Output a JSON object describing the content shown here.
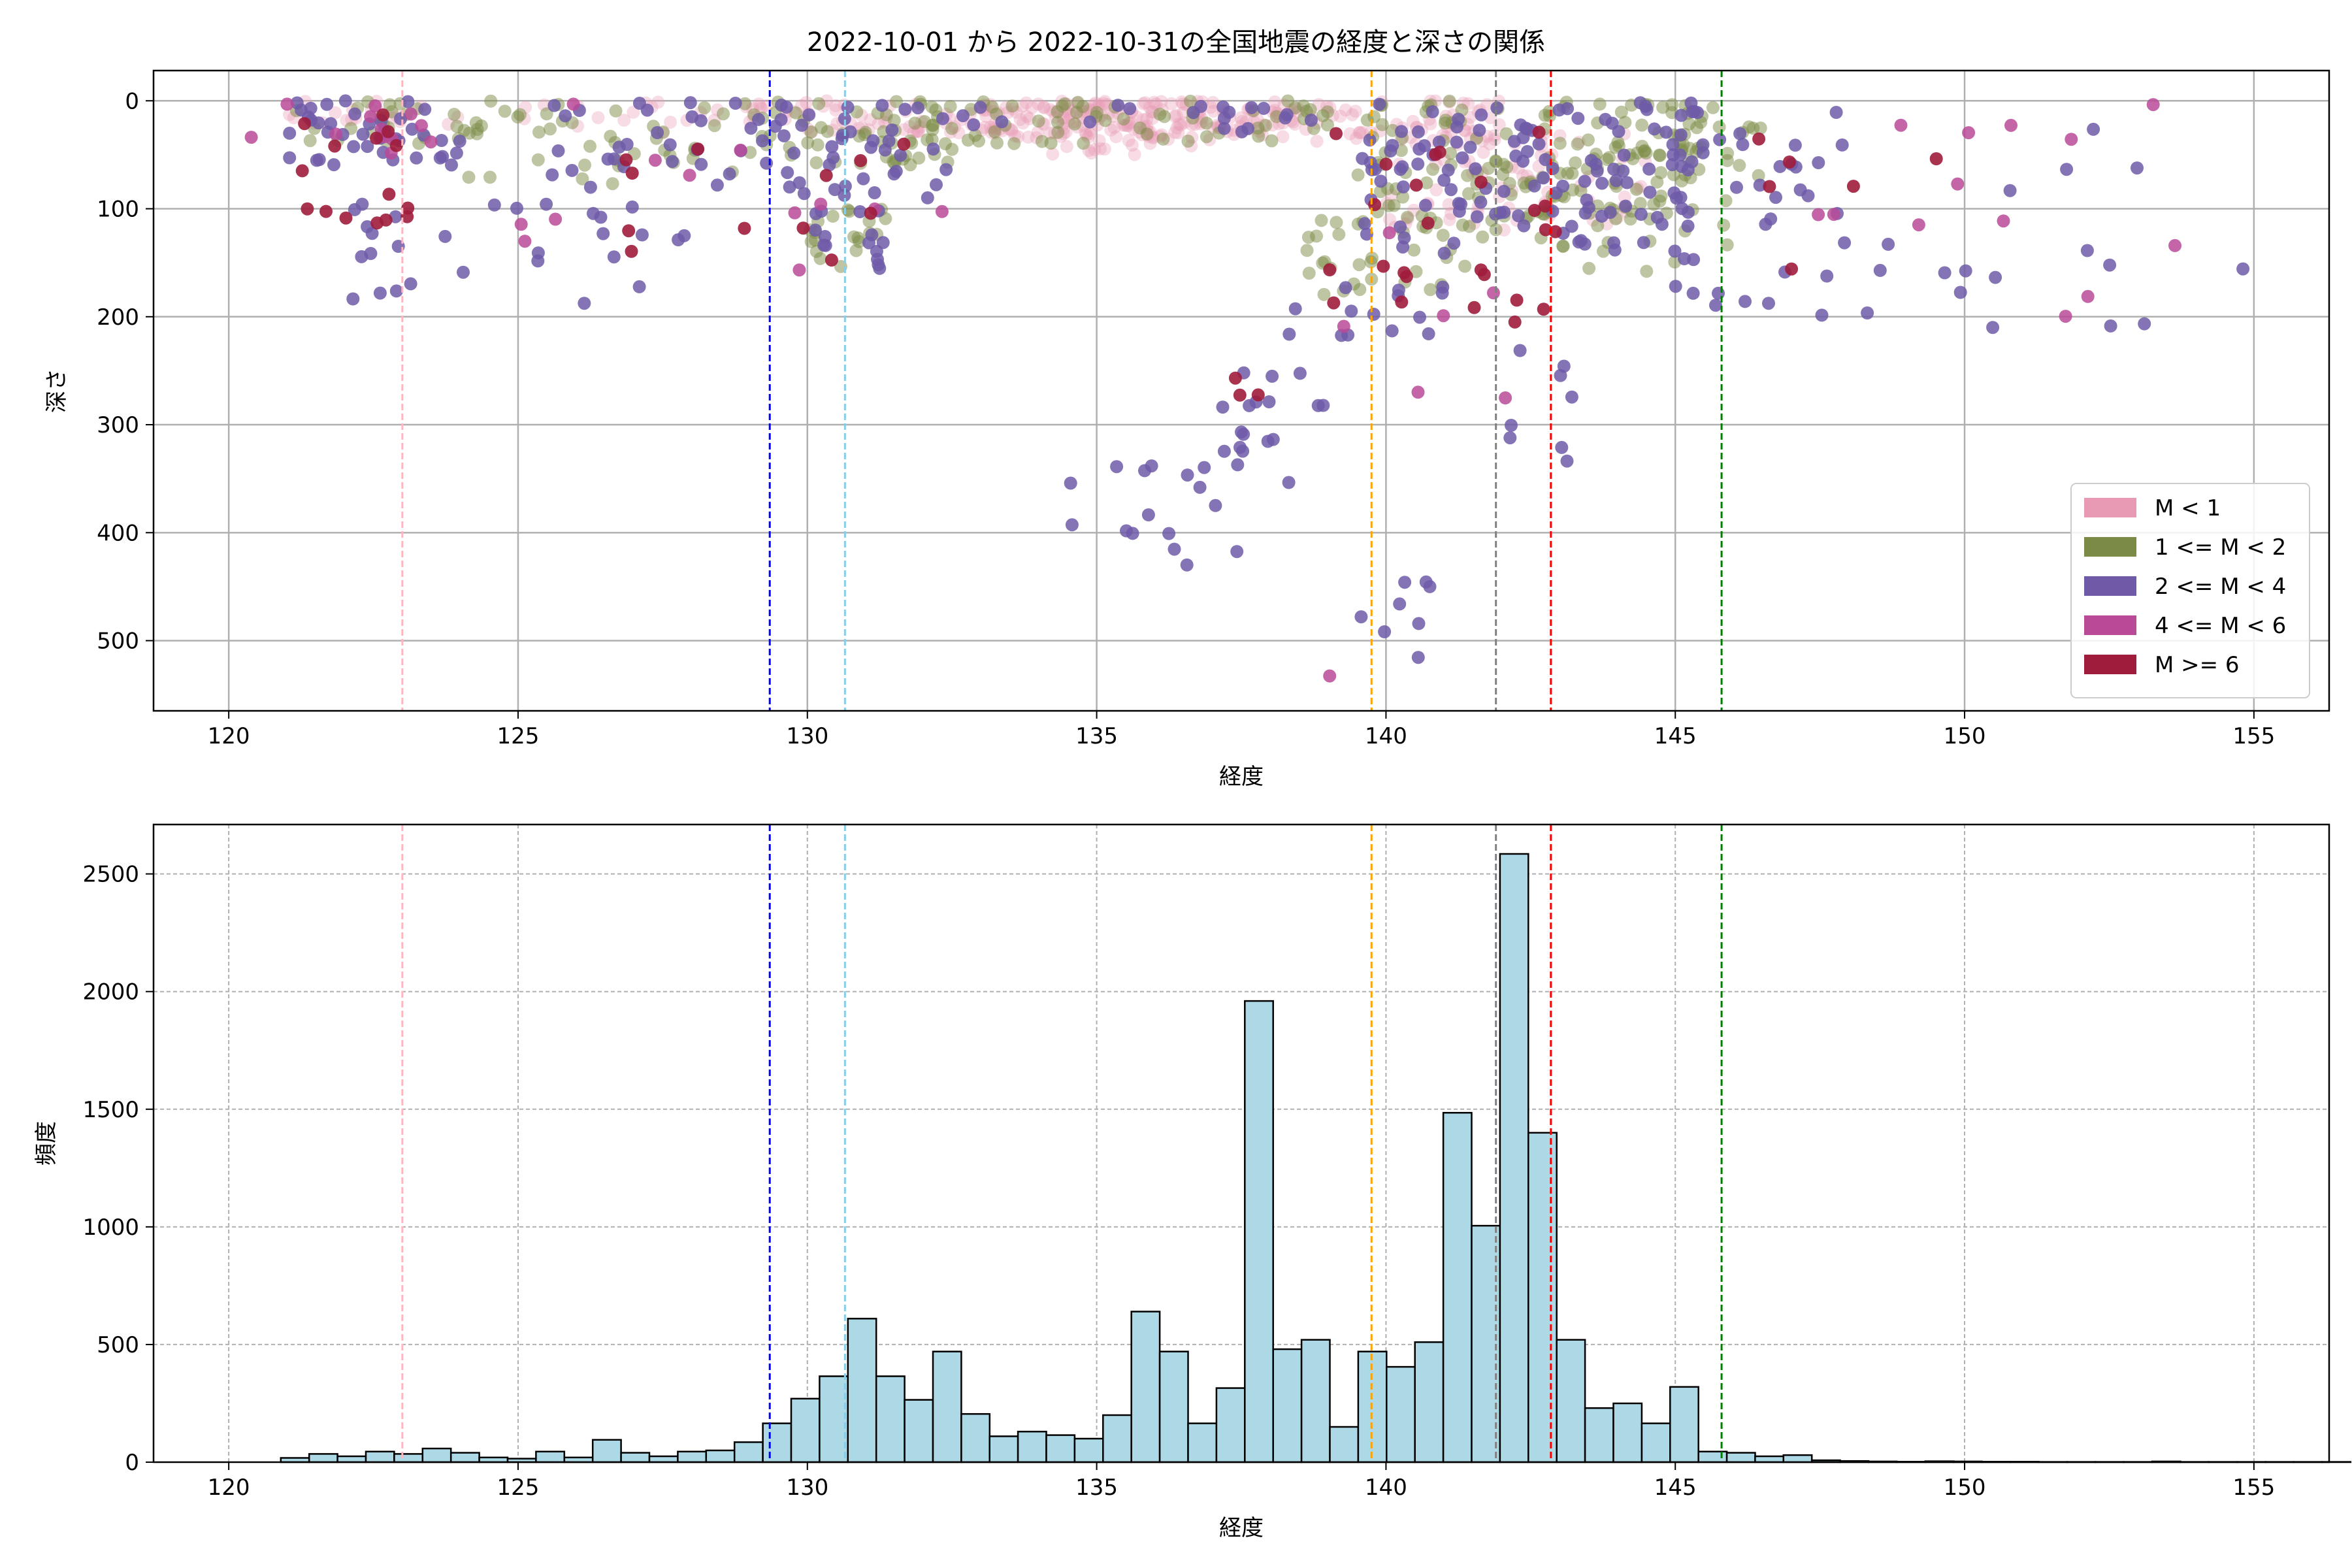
{
  "figure": {
    "title": "2022-10-01 から 2022-10-31の全国地震の経度と深さの関係"
  },
  "chart_data": [
    {
      "type": "scatter",
      "xlabel": "経度",
      "ylabel": "深さ",
      "xlim": [
        118.7,
        156.3
      ],
      "ylim": [
        565,
        -28
      ],
      "y_inverted": true,
      "grid": true,
      "legend_position": "lower-right",
      "xticks": [
        120,
        125,
        130,
        135,
        140,
        145,
        150,
        155
      ],
      "yticks": [
        0,
        100,
        200,
        300,
        400,
        500
      ],
      "vlines": [
        {
          "x": 123.0,
          "color": "#ffb6c1"
        },
        {
          "x": 129.35,
          "color": "#0000ff"
        },
        {
          "x": 130.65,
          "color": "#87ceeb"
        },
        {
          "x": 139.75,
          "color": "#ffa500"
        },
        {
          "x": 141.9,
          "color": "#808080"
        },
        {
          "x": 142.85,
          "color": "#ff0000"
        },
        {
          "x": 145.8,
          "color": "#008000"
        }
      ],
      "series": [
        {
          "name": "M < 1",
          "color": "#e89ab4",
          "opacity": 0.35,
          "clusters": [
            {
              "x": [
                121.0,
                123.5
              ],
              "y": [
                0,
                25
              ],
              "n": 20
            },
            {
              "x": [
                123.5,
                129.0
              ],
              "y": [
                0,
                30
              ],
              "n": 20
            },
            {
              "x": [
                129.0,
                133.5
              ],
              "y": [
                0,
                30
              ],
              "n": 60
            },
            {
              "x": [
                133.0,
                138.5
              ],
              "y": [
                0,
                35
              ],
              "n": 170
            },
            {
              "x": [
                134.0,
                137.0
              ],
              "y": [
                10,
                50
              ],
              "n": 40
            },
            {
              "x": [
                138.5,
                142.0
              ],
              "y": [
                0,
                40
              ],
              "n": 60
            },
            {
              "x": [
                140.0,
                144.5
              ],
              "y": [
                30,
                120
              ],
              "n": 70
            }
          ]
        },
        {
          "name": "1 <= M < 2",
          "color": "#7b8b45",
          "opacity": 0.5,
          "clusters": [
            {
              "x": [
                121.0,
                124.5
              ],
              "y": [
                0,
                40
              ],
              "n": 25
            },
            {
              "x": [
                124.0,
                129.0
              ],
              "y": [
                0,
                80
              ],
              "n": 40
            },
            {
              "x": [
                129.0,
                132.5
              ],
              "y": [
                0,
                60
              ],
              "n": 60
            },
            {
              "x": [
                130.0,
                131.5
              ],
              "y": [
                100,
                160
              ],
              "n": 20
            },
            {
              "x": [
                132.0,
                139.0
              ],
              "y": [
                0,
                40
              ],
              "n": 60
            },
            {
              "x": [
                138.5,
                142.0
              ],
              "y": [
                100,
                180
              ],
              "n": 40
            },
            {
              "x": [
                139.5,
                145.5
              ],
              "y": [
                0,
                110
              ],
              "n": 120
            },
            {
              "x": [
                142.0,
                146.0
              ],
              "y": [
                40,
                160
              ],
              "n": 40
            },
            {
              "x": [
                144.0,
                146.5
              ],
              "y": [
                0,
                70
              ],
              "n": 25
            }
          ]
        },
        {
          "name": "2 <= M < 4",
          "color": "#6f5aa8",
          "opacity": 0.85,
          "clusters": [
            {
              "x": [
                121.0,
                124.0
              ],
              "y": [
                0,
                60
              ],
              "n": 40
            },
            {
              "x": [
                122.0,
                128.0
              ],
              "y": [
                60,
                190
              ],
              "n": 30
            },
            {
              "x": [
                125.0,
                129.0
              ],
              "y": [
                0,
                80
              ],
              "n": 25
            },
            {
              "x": [
                129.0,
                132.5
              ],
              "y": [
                0,
                90
              ],
              "n": 45
            },
            {
              "x": [
                130.0,
                131.5
              ],
              "y": [
                100,
                160
              ],
              "n": 15
            },
            {
              "x": [
                132.0,
                139.0
              ],
              "y": [
                0,
                30
              ],
              "n": 20
            },
            {
              "x": [
                134.5,
                137.5
              ],
              "y": [
                330,
                430
              ],
              "n": 16
            },
            {
              "x": [
                137.0,
                139.0
              ],
              "y": [
                250,
                360
              ],
              "n": 18
            },
            {
              "x": [
                138.0,
                141.0
              ],
              "y": [
                170,
                220
              ],
              "n": 14
            },
            {
              "x": [
                139.5,
                141.0
              ],
              "y": [
                430,
                540
              ],
              "n": 8
            },
            {
              "x": [
                139.5,
                145.5
              ],
              "y": [
                0,
                150
              ],
              "n": 110
            },
            {
              "x": [
                142.0,
                143.5
              ],
              "y": [
                230,
                350
              ],
              "n": 8
            },
            {
              "x": [
                144.0,
                148.0
              ],
              "y": [
                0,
                120
              ],
              "n": 40
            },
            {
              "x": [
                145.0,
                149.0
              ],
              "y": [
                130,
                200
              ],
              "n": 15
            },
            {
              "x": [
                149.0,
                155.0
              ],
              "y": [
                0,
                210
              ],
              "n": 14
            }
          ]
        },
        {
          "name": "4 <= M < 6",
          "color": "#b84a98",
          "opacity": 0.85,
          "clusters": [
            {
              "x": [
                120.3,
                123.5
              ],
              "y": [
                0,
                60
              ],
              "n": 12
            },
            {
              "x": [
                123.5,
                133.0
              ],
              "y": [
                0,
                160
              ],
              "n": 12
            },
            {
              "x": [
                139.0,
                143.0
              ],
              "y": [
                60,
                280
              ],
              "n": 6
            },
            {
              "x": [
                139.0,
                140.0
              ],
              "y": [
                510,
                540
              ],
              "n": 1
            },
            {
              "x": [
                146.5,
                151.0
              ],
              "y": [
                0,
                140
              ],
              "n": 8
            },
            {
              "x": [
                151.5,
                153.7
              ],
              "y": [
                0,
                230
              ],
              "n": 5
            }
          ]
        },
        {
          "name": "M >= 6",
          "color": "#a01c3c",
          "opacity": 0.9,
          "clusters": [
            {
              "x": [
                121.0,
                123.5
              ],
              "y": [
                0,
                120
              ],
              "n": 15
            },
            {
              "x": [
                126.5,
                132.0
              ],
              "y": [
                0,
                150
              ],
              "n": 12
            },
            {
              "x": [
                137.0,
                138.0
              ],
              "y": [
                250,
                290
              ],
              "n": 3
            },
            {
              "x": [
                139.0,
                143.0
              ],
              "y": [
                20,
                210
              ],
              "n": 25
            },
            {
              "x": [
                146.0,
                150.5
              ],
              "y": [
                20,
                180
              ],
              "n": 6
            }
          ]
        }
      ]
    },
    {
      "type": "bar",
      "xlabel": "経度",
      "ylabel": "頻度",
      "xlim": [
        118.7,
        156.3
      ],
      "ylim": [
        0,
        2710
      ],
      "grid": true,
      "bar_color": "#add8e6",
      "edge_color": "#000000",
      "xticks": [
        120,
        125,
        130,
        135,
        140,
        145,
        150,
        155
      ],
      "yticks": [
        0,
        500,
        1000,
        1500,
        2000,
        2500
      ],
      "bin_start": 120.9,
      "bin_width": 0.49,
      "values": [
        18,
        35,
        25,
        45,
        35,
        58,
        40,
        20,
        15,
        45,
        20,
        95,
        40,
        25,
        45,
        50,
        85,
        165,
        270,
        365,
        610,
        365,
        265,
        470,
        205,
        110,
        130,
        115,
        100,
        200,
        640,
        470,
        165,
        315,
        1960,
        480,
        520,
        150,
        470,
        405,
        510,
        1485,
        1005,
        2585,
        1400,
        520,
        230,
        250,
        165,
        320,
        45,
        40,
        25,
        30,
        8,
        5,
        3,
        2,
        4,
        3,
        2,
        2,
        1,
        1,
        1,
        1,
        3,
        1,
        1,
        1,
        1,
        1,
        1
      ],
      "vlines": [
        {
          "x": 123.0,
          "color": "#ffb6c1"
        },
        {
          "x": 129.35,
          "color": "#0000ff"
        },
        {
          "x": 130.65,
          "color": "#87ceeb"
        },
        {
          "x": 139.75,
          "color": "#ffa500"
        },
        {
          "x": 141.9,
          "color": "#808080"
        },
        {
          "x": 142.85,
          "color": "#ff0000"
        },
        {
          "x": 145.8,
          "color": "#008000"
        }
      ]
    }
  ]
}
